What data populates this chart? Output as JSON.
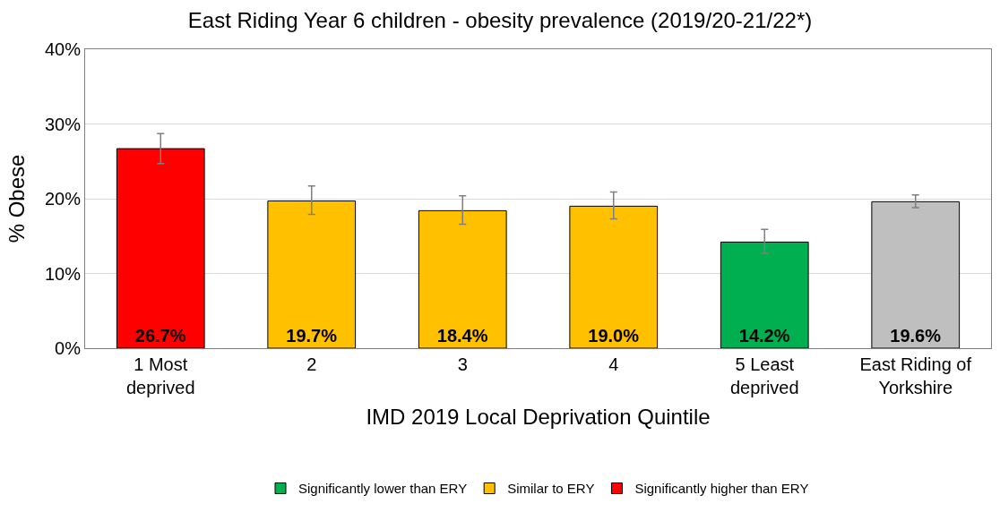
{
  "chart_data": {
    "type": "bar",
    "title": "East Riding Year 6 children - obesity prevalence (2019/20-21/22*)",
    "xlabel": "IMD 2019 Local Deprivation Quintile",
    "ylabel": "% Obese",
    "categories": [
      "1 Most\ndeprived",
      "2",
      "3",
      "4",
      "5 Least\ndeprived",
      "East Riding of\nYorkshire"
    ],
    "series": [
      {
        "name": "Significantly lower than ERY",
        "color": "#00b050",
        "values": [
          null,
          null,
          null,
          null,
          14.2,
          null
        ],
        "errors": [
          null,
          null,
          null,
          null,
          [
            12.7,
            15.9
          ],
          null
        ],
        "value_labels": [
          null,
          null,
          null,
          null,
          "14.2%",
          null
        ]
      },
      {
        "name": "Similar to ERY",
        "color": "#ffc000",
        "values": [
          null,
          19.7,
          18.4,
          19.0,
          null,
          null
        ],
        "errors": [
          null,
          [
            17.9,
            21.7
          ],
          [
            16.6,
            20.4
          ],
          [
            17.3,
            20.9
          ],
          null,
          null
        ],
        "value_labels": [
          null,
          "19.7%",
          "18.4%",
          "19.0%",
          null,
          null
        ]
      },
      {
        "name": "Significantly higher than ERY",
        "color": "#ff0000",
        "values": [
          26.7,
          null,
          null,
          null,
          null,
          null
        ],
        "errors": [
          [
            24.7,
            28.7
          ],
          null,
          null,
          null,
          null,
          null
        ],
        "value_labels": [
          "26.7%",
          null,
          null,
          null,
          null,
          null
        ]
      },
      {
        "color": "#bfbfbf",
        "values": [
          null,
          null,
          null,
          null,
          null,
          19.6
        ],
        "errors": [
          null,
          null,
          null,
          null,
          null,
          [
            18.8,
            20.5
          ]
        ],
        "value_labels": [
          null,
          null,
          null,
          null,
          null,
          "19.6%"
        ]
      }
    ],
    "ylim": [
      0,
      40
    ],
    "yticks": [
      {
        "value": 0,
        "label": "0%"
      },
      {
        "value": 10,
        "label": "10%"
      },
      {
        "value": 20,
        "label": "20%"
      },
      {
        "value": 30,
        "label": "30%"
      },
      {
        "value": 40,
        "label": "40%"
      }
    ],
    "grid": "y",
    "legend": "bottom"
  }
}
